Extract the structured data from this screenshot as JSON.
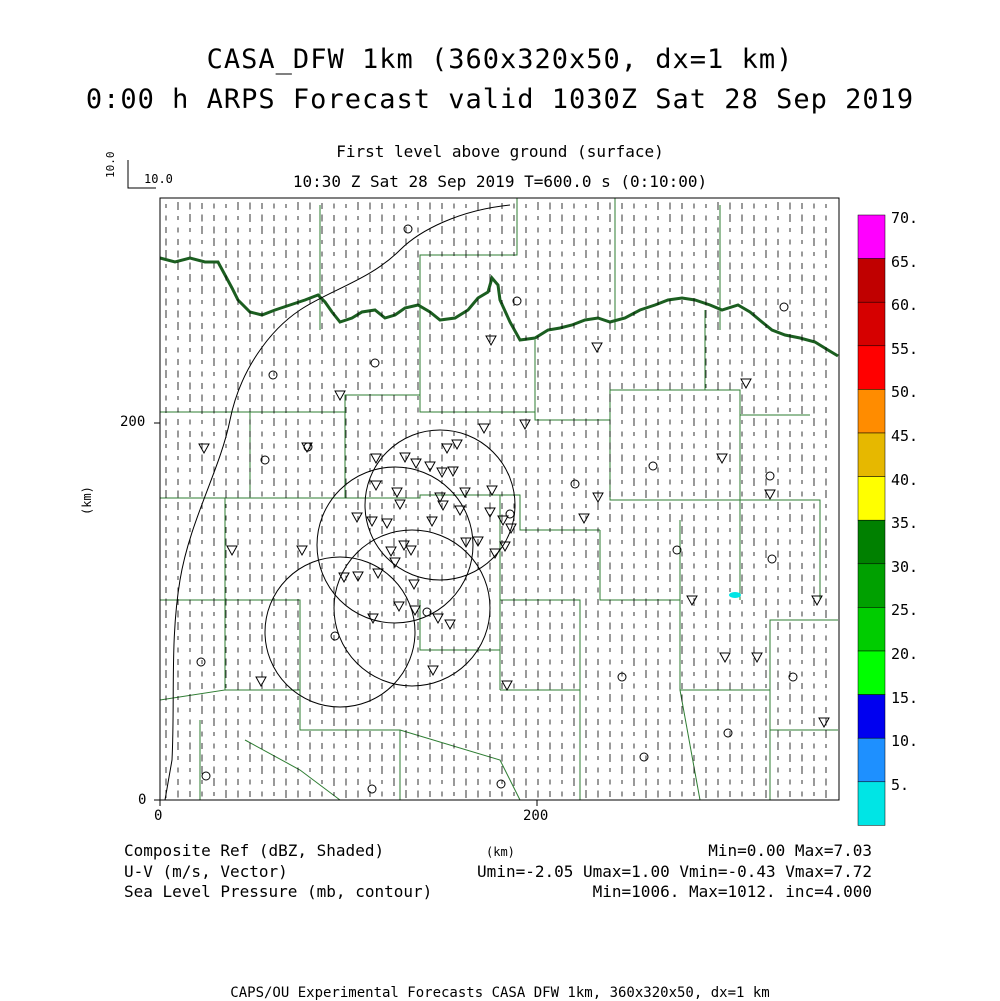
{
  "title": {
    "line1": "CASA_DFW 1km (360x320x50, dx=1 km)",
    "line2": "0:00 h ARPS Forecast valid 1030Z Sat 28 Sep 2019"
  },
  "subtitle": {
    "level": "First level above ground (surface)",
    "time": "10:30 Z Sat 28 Sep 2019   T=600.0 s (0:10:00)"
  },
  "vector_key": {
    "vertical": "10.0",
    "horizontal": "10.0"
  },
  "axes": {
    "y_label": "(km)",
    "x_label": "(km)",
    "x_ticks": [
      "0",
      "200"
    ],
    "y_ticks": [
      "0",
      "200"
    ]
  },
  "colorbar": {
    "labels": [
      "70.",
      "65.",
      "60.",
      "55.",
      "50.",
      "45.",
      "40.",
      "35.",
      "30.",
      "25.",
      "20.",
      "15.",
      "10.",
      "5."
    ],
    "colors": [
      "#ff00ff",
      "#c00000",
      "#d60000",
      "#ff0000",
      "#ff8c00",
      "#e6b800",
      "#ffff00",
      "#008000",
      "#00a000",
      "#00cc00",
      "#00ff00",
      "#0000f0",
      "#1e90ff",
      "#00e5e5"
    ]
  },
  "footer": {
    "field1": "Composite Ref (dBZ, Shaded)",
    "field2": "U-V (m/s, Vector)",
    "field3": "Sea Level Pressure (mb, contour)",
    "stats1": "Min=0.00 Max=7.03",
    "stats2": "Umin=-2.05 Umax=1.00 Vmin=-0.43 Vmax=7.72",
    "stats3": "Min=1006. Max=1012. inc=4.000",
    "credit": "CAPS/OU Experimental Forecasts  CASA DFW 1km, 360x320x50, dx=1 km"
  },
  "colors": {
    "county_lines": "#2e7d32",
    "state_border": "#1b5e20",
    "vectors": "#000000",
    "contours": "#000000",
    "echo": "#00e5e5"
  }
}
